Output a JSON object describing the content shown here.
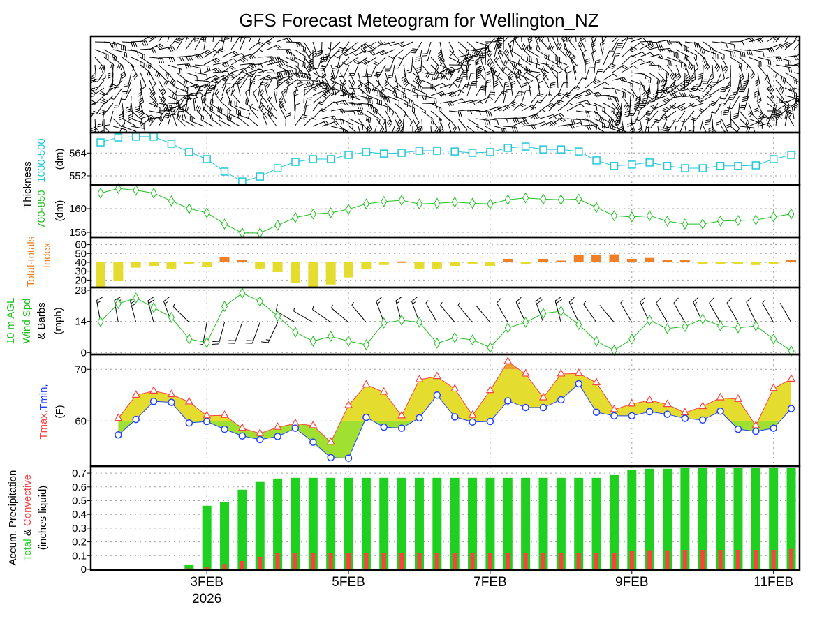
{
  "title": "GFS Forecast Meteogram for Wellington_NZ",
  "labels": {
    "thickness": "Thickness",
    "thick_1000_500": "1000-500",
    "thick_700_850": "700-850",
    "dm": "(dm)",
    "tt_line1": "Total-totals",
    "tt_line2": "Index",
    "wind_line1": "10 m AGL",
    "wind_line2": "Wind Spd",
    "wind_line3": "& Barbs",
    "wind_line4": "(mph)",
    "tmax": "Tmax",
    "tmin": "Tmin,",
    "comma": ",",
    "f_unit": "(F)",
    "precip_line1": "Accum. Precipitation",
    "precip_total": "Total",
    "precip_amp": " & ",
    "precip_conv": "Convective",
    "precip_line3": "(inches liquid)"
  },
  "colors": {
    "thick_1000_500": "#20c8d8",
    "thick_700_850": "#20c020",
    "tt_high": "#f08028",
    "tt_low": "#e5dc30",
    "wind": "#20c020",
    "tmax": "#ff4040",
    "tmin": "#2040ff",
    "fill_warm": "#e8a030",
    "fill_mid": "#e5dc30",
    "fill_cool": "#a0e030",
    "precip_total": "#20d020",
    "precip_conv": "#ff4040"
  },
  "chart_data": {
    "type": "line",
    "title": "GFS Forecast Meteogram for Wellington_NZ",
    "x_ticks": [
      {
        "index": 6,
        "label": "3FEB",
        "sublabel": "2026"
      },
      {
        "index": 14,
        "label": "5FEB",
        "sublabel": ""
      },
      {
        "index": 22,
        "label": "7FEB",
        "sublabel": ""
      },
      {
        "index": 30,
        "label": "9FEB",
        "sublabel": ""
      },
      {
        "index": 38,
        "label": "11FEB",
        "sublabel": ""
      }
    ],
    "thickness_1000_500": {
      "ylabel": "(dm)",
      "ticks": [
        "564",
        "552"
      ],
      "tick_values": [
        564,
        552
      ],
      "ylim": [
        547,
        575
      ],
      "values": [
        569.6,
        572.2,
        572.6,
        572.6,
        568.9,
        564.5,
        560.8,
        554.2,
        549.0,
        551.6,
        556.0,
        559.3,
        560.8,
        560.8,
        563.0,
        564.5,
        563.7,
        564.1,
        565.2,
        565.2,
        564.8,
        564.1,
        564.5,
        566.7,
        567.4,
        565.9,
        565.9,
        564.8,
        560.1,
        557.2,
        557.9,
        559.0,
        557.2,
        556.0,
        556.0,
        557.2,
        557.2,
        557.5,
        560.8,
        563.0
      ]
    },
    "thickness_700_850": {
      "ylabel": "(dm)",
      "ticks": [
        "160",
        "156"
      ],
      "tick_values": [
        160,
        156
      ],
      "ylim": [
        155.3,
        164.1
      ],
      "values": [
        162.6,
        163.4,
        163.1,
        162.6,
        161.3,
        160.0,
        159.3,
        157.4,
        155.9,
        155.9,
        157.2,
        158.5,
        159.1,
        159.3,
        159.9,
        160.8,
        161.2,
        161.4,
        160.8,
        160.9,
        161.1,
        160.9,
        160.8,
        161.5,
        161.8,
        161.6,
        161.5,
        161.6,
        160.2,
        158.8,
        158.6,
        158.8,
        157.9,
        157.4,
        157.4,
        157.9,
        158.0,
        158.1,
        158.6,
        159.1
      ]
    },
    "total_totals": {
      "type": "bar",
      "baseline": 40,
      "ticks": [
        "60",
        "50",
        "40",
        "30",
        "20"
      ],
      "tick_values": [
        60,
        50,
        40,
        30,
        20
      ],
      "values": [
        11,
        19,
        34,
        36,
        33,
        38,
        35,
        46,
        43,
        33,
        29,
        17,
        12,
        15,
        23,
        32,
        37,
        41,
        33,
        33,
        36,
        39,
        36,
        44,
        39,
        44,
        42,
        48,
        48,
        49,
        44,
        45,
        43,
        43,
        40,
        39,
        39,
        37,
        39,
        43
      ]
    },
    "wind_speed_mph": {
      "ticks": [
        "28",
        "14",
        "0"
      ],
      "tick_values": [
        28,
        14,
        0
      ],
      "ylim": [
        0,
        28.8
      ],
      "values": [
        13.9,
        22.0,
        24.5,
        20.2,
        15.8,
        6.1,
        4.5,
        20.8,
        26.7,
        23.0,
        16.4,
        9.2,
        5.1,
        7.3,
        5.1,
        3.5,
        13.3,
        14.5,
        13.6,
        4.2,
        6.7,
        5.7,
        2.3,
        11.1,
        13.6,
        17.6,
        18.6,
        12.6,
        5.1,
        1.0,
        6.1,
        14.5,
        10.8,
        11.7,
        15.1,
        12.0,
        11.1,
        12.0,
        6.1,
        0.7
      ],
      "direction_deg": [
        350,
        350,
        345,
        345,
        340,
        315,
        190,
        195,
        200,
        200,
        205,
        300,
        300,
        305,
        310,
        320,
        340,
        345,
        340,
        330,
        320,
        320,
        320,
        330,
        335,
        340,
        345,
        335,
        325,
        320,
        330,
        335,
        330,
        330,
        335,
        330,
        330,
        335,
        330,
        330
      ]
    },
    "temperature_f": {
      "ticks": [
        "70",
        "60"
      ],
      "tick_values": [
        70,
        60
      ],
      "ylim": [
        51,
        73
      ],
      "tmax": [
        null,
        60.5,
        65.0,
        65.8,
        65.1,
        63.7,
        61.0,
        61.1,
        58.6,
        57.6,
        58.8,
        59.5,
        59.1,
        55.9,
        63.0,
        67.0,
        65.6,
        61.0,
        68.0,
        68.6,
        66.2,
        61.1,
        65.9,
        71.5,
        69.1,
        64.5,
        69.1,
        69.2,
        67.4,
        62.2,
        63.3,
        64.0,
        63.2,
        61.6,
        62.8,
        64.5,
        64.2,
        59.1,
        66.3,
        68.1
      ],
      "tmin": [
        null,
        57.3,
        60.3,
        63.8,
        63.6,
        59.6,
        59.9,
        58.4,
        57.1,
        56.4,
        57.0,
        58.6,
        55.9,
        52.9,
        52.8,
        60.7,
        58.8,
        58.6,
        60.6,
        65.0,
        60.8,
        59.8,
        59.9,
        63.9,
        62.6,
        62.6,
        64.1,
        67.2,
        61.7,
        61.0,
        61.0,
        61.8,
        61.3,
        60.5,
        60.2,
        61.9,
        58.4,
        58.0,
        58.6,
        62.4
      ]
    },
    "precipitation_in": {
      "type": "bar",
      "ticks": [
        "0.7",
        "0.6",
        "0.5",
        "0.4",
        "0.3",
        "0.2",
        "0.1",
        "0"
      ],
      "tick_values": [
        0.7,
        0.6,
        0.5,
        0.4,
        0.3,
        0.2,
        0.1,
        0
      ],
      "total": [
        0,
        0,
        0,
        0,
        0,
        0.036,
        0.463,
        0.488,
        0.58,
        0.636,
        0.661,
        0.666,
        0.666,
        0.666,
        0.666,
        0.666,
        0.666,
        0.666,
        0.666,
        0.666,
        0.666,
        0.666,
        0.666,
        0.666,
        0.666,
        0.666,
        0.666,
        0.666,
        0.666,
        0.686,
        0.722,
        0.732,
        0.732,
        0.737,
        0.737,
        0.737,
        0.737,
        0.737,
        0.737,
        0.737
      ],
      "convective": [
        0,
        0,
        0,
        0,
        0,
        0.008,
        0.02,
        0.039,
        0.061,
        0.092,
        0.117,
        0.122,
        0.122,
        0.122,
        0.122,
        0.122,
        0.122,
        0.122,
        0.122,
        0.122,
        0.122,
        0.122,
        0.122,
        0.122,
        0.122,
        0.122,
        0.122,
        0.122,
        0.122,
        0.122,
        0.132,
        0.139,
        0.139,
        0.142,
        0.142,
        0.142,
        0.142,
        0.142,
        0.142,
        0.149
      ]
    }
  }
}
